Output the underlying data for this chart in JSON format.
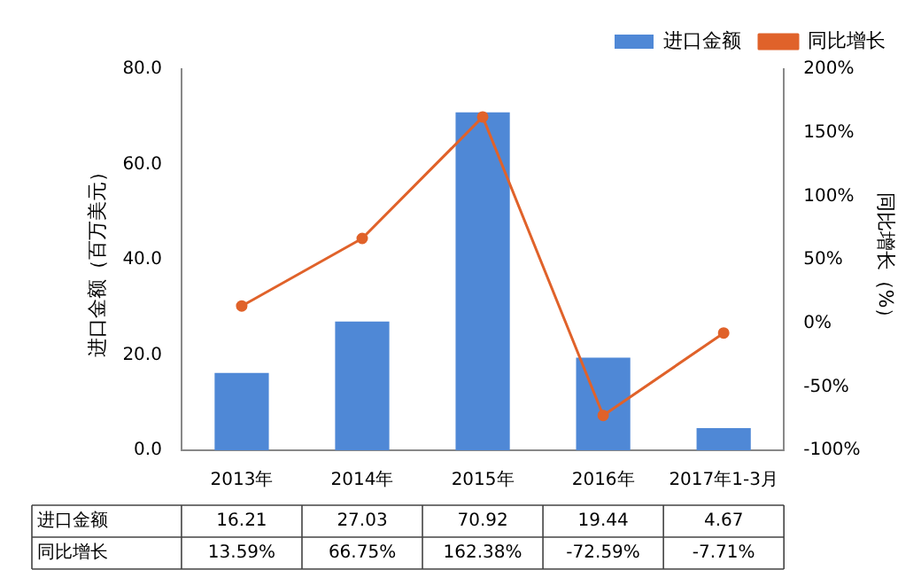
{
  "chart_data": {
    "type": "bar",
    "categories": [
      "2013年",
      "2014年",
      "2015年",
      "2016年",
      "2017年1-3月"
    ],
    "ylabel": "进口金额（百万美元）",
    "y2label": "同比增长（%）",
    "ylim": [
      0,
      80
    ],
    "yticks": [
      {
        "value": 0,
        "label": "0.0"
      },
      {
        "value": 20,
        "label": "20.0"
      },
      {
        "value": 40,
        "label": "40.0"
      },
      {
        "value": 60,
        "label": "60.0"
      },
      {
        "value": 80,
        "label": "80.0"
      }
    ],
    "y2lim": [
      -100,
      200
    ],
    "y2ticks": [
      {
        "value": -100,
        "label": "-100%"
      },
      {
        "value": -50,
        "label": "-50%"
      },
      {
        "value": 0,
        "label": "0%"
      },
      {
        "value": 50,
        "label": "50%"
      },
      {
        "value": 100,
        "label": "100%"
      },
      {
        "value": 150,
        "label": "150%"
      },
      {
        "value": 200,
        "label": "200%"
      }
    ],
    "legend": "top right",
    "grid": false,
    "marker": "circle",
    "series": [
      {
        "name": "进口金额",
        "color": "#4f88d6",
        "values": [
          16.21,
          27.03,
          70.92,
          19.44,
          4.67
        ],
        "value_labels": [
          "16.21",
          "27.03",
          "70.92",
          "19.44",
          "4.67"
        ]
      },
      {
        "name": "同比增长",
        "type": "line",
        "axis": "y2",
        "color": "#e0622a",
        "values": [
          13.59,
          66.75,
          162.38,
          -72.59,
          -7.71
        ],
        "value_labels": [
          "13.59%",
          "66.75%",
          "162.38%",
          "-72.59%",
          "-7.71%"
        ]
      }
    ]
  }
}
